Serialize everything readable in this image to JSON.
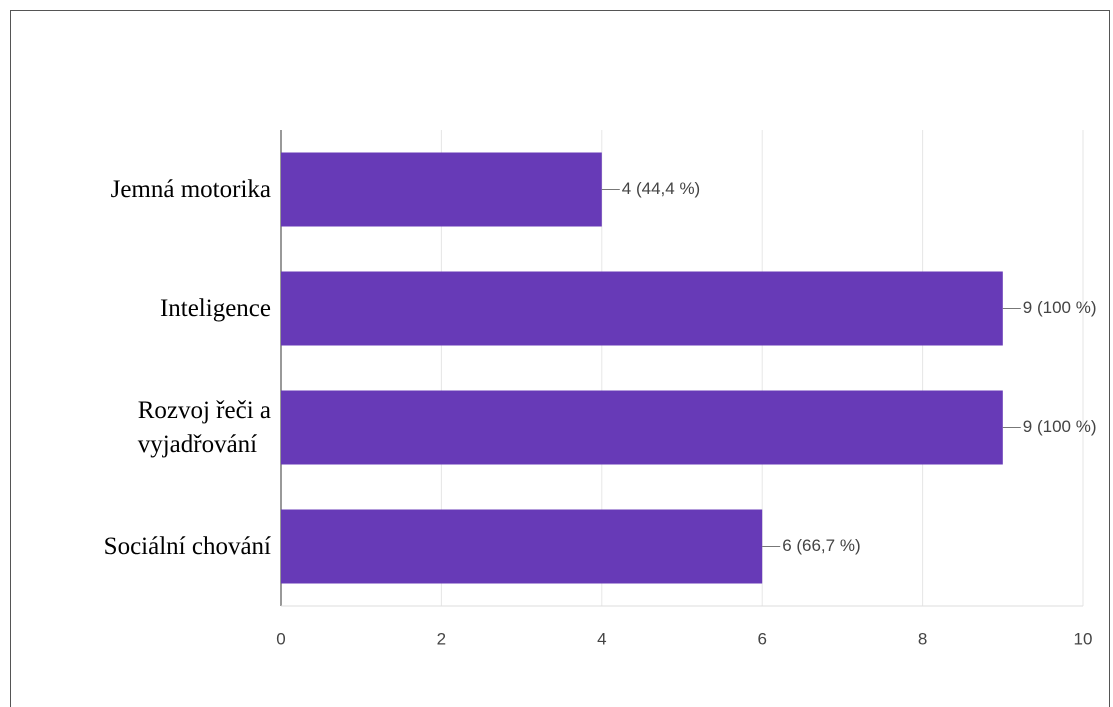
{
  "chart_data": {
    "type": "barh",
    "categories": [
      "Jemná motorika",
      "Inteligence",
      "Rozvoj řeči a vyjadřování",
      "Sociální chování"
    ],
    "values": [
      4,
      9,
      9,
      6
    ],
    "value_labels": [
      "4 (44,4 %)",
      "9 (100 %)",
      "9 (100 %)",
      "6 (66,7 %)"
    ],
    "color": "#673ab7",
    "xlim": [
      0,
      10
    ],
    "xticks": [
      0,
      2,
      4,
      6,
      8,
      10
    ],
    "grid": true
  }
}
